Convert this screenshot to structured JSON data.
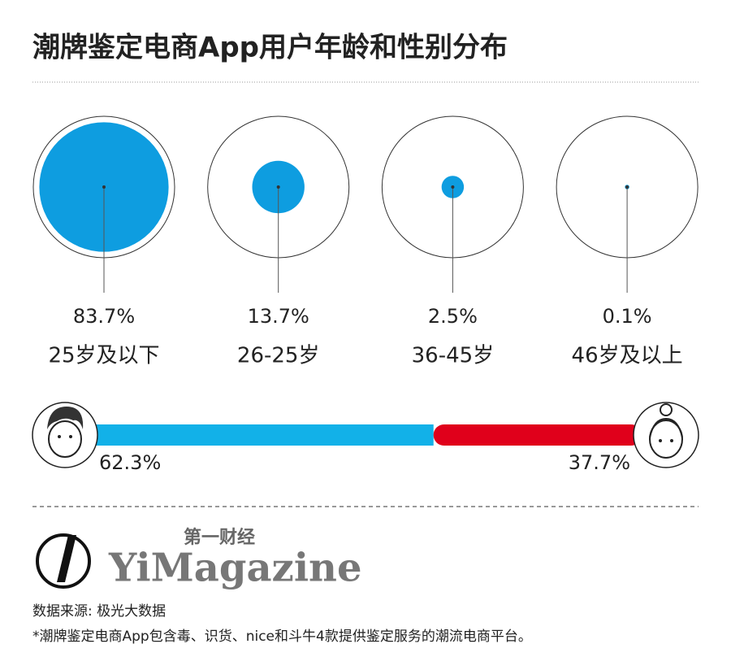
{
  "title": "潮牌鉴定电商App用户年龄和性别分布",
  "chart_data": [
    {
      "type": "circle",
      "categories": [
        "25岁及以下",
        "26-25岁",
        "36-45岁",
        "46岁及以上"
      ],
      "values": [
        83.7,
        13.7,
        2.5,
        0.1
      ],
      "value_labels": [
        "83.7%",
        "13.7%",
        "2.5%",
        "0.1%"
      ],
      "color": "#0e9de0"
    },
    {
      "type": "split-bar",
      "series": [
        {
          "color": "#12b1e8",
          "values": [
            62.3
          ],
          "value_labels": [
            "62.3%"
          ]
        },
        {
          "color": "#e0001b",
          "values": [
            37.7
          ],
          "value_labels": [
            "37.7%"
          ]
        }
      ]
    }
  ],
  "logo": {
    "cn": "第一财经",
    "en": "YiMagazine"
  },
  "source": "数据来源: 极光大数据",
  "note": "*潮牌鉴定电商App包含毒、识货、nice和斗牛4款提供鉴定服务的潮流电商平台。"
}
